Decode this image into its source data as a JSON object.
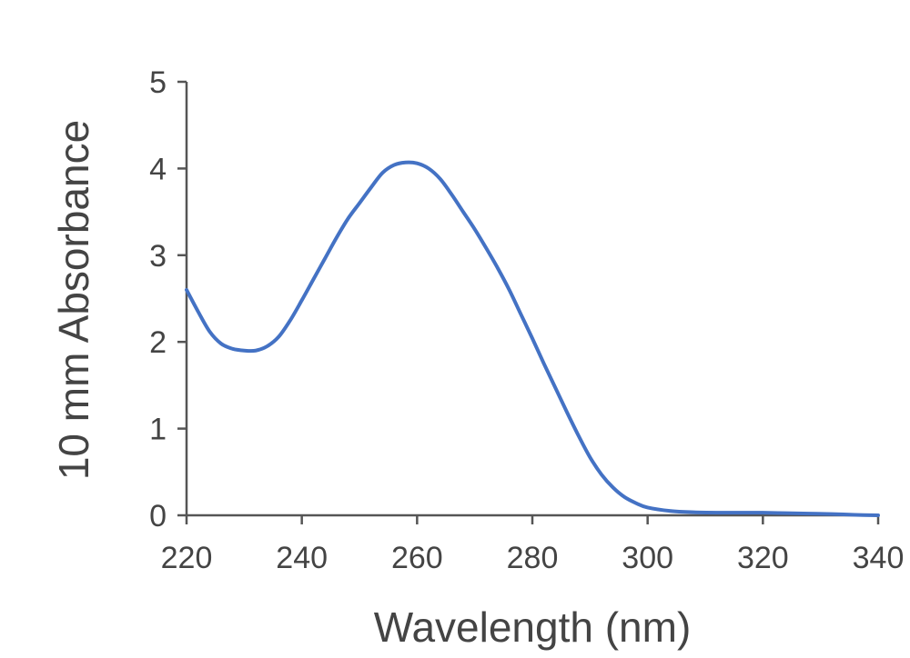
{
  "chart_data": {
    "type": "line",
    "title": "",
    "xlabel": "Wavelength (nm)",
    "ylabel": "10 mm Absorbance",
    "xlim": [
      220,
      340
    ],
    "ylim": [
      0,
      5
    ],
    "xticks": [
      220,
      240,
      260,
      280,
      300,
      320,
      340
    ],
    "yticks": [
      0,
      1,
      2,
      3,
      4,
      5
    ],
    "grid": false,
    "legend": "none",
    "colors": {
      "line": "#4472c4",
      "axis": "#555555",
      "text": "#444444"
    },
    "series": [
      {
        "x": [
          220,
          222,
          224,
          226,
          228,
          230,
          232,
          234,
          236,
          238,
          240,
          242,
          244,
          246,
          248,
          250,
          252,
          254,
          256,
          258,
          260,
          262,
          264,
          266,
          268,
          270,
          272,
          274,
          276,
          278,
          280,
          282,
          284,
          286,
          288,
          290,
          292,
          294,
          296,
          298,
          300,
          304,
          308,
          312,
          316,
          320,
          324,
          328,
          332,
          336,
          340
        ],
        "values": [
          2.6,
          2.35,
          2.12,
          1.98,
          1.92,
          1.9,
          1.9,
          1.95,
          2.06,
          2.25,
          2.48,
          2.72,
          2.96,
          3.2,
          3.42,
          3.6,
          3.78,
          3.95,
          4.04,
          4.07,
          4.06,
          4.0,
          3.88,
          3.7,
          3.5,
          3.3,
          3.08,
          2.85,
          2.6,
          2.32,
          2.04,
          1.75,
          1.47,
          1.19,
          0.92,
          0.67,
          0.47,
          0.32,
          0.21,
          0.14,
          0.09,
          0.05,
          0.035,
          0.03,
          0.03,
          0.03,
          0.025,
          0.02,
          0.015,
          0.005,
          0.0
        ]
      }
    ]
  }
}
